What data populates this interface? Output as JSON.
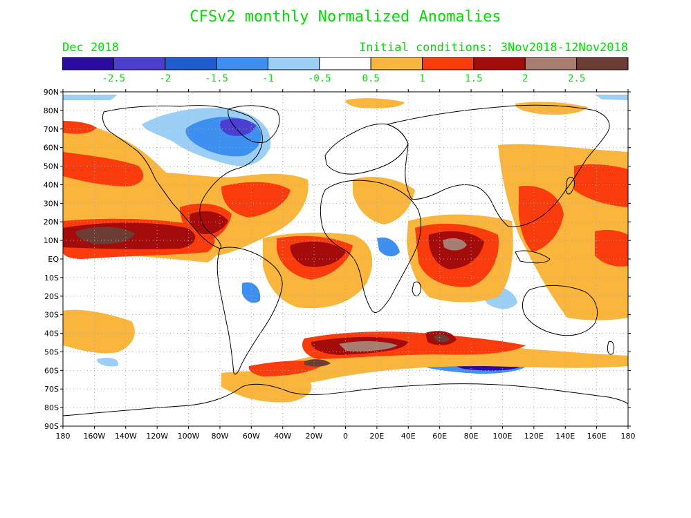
{
  "title": "CFSv2 monthly Normalized Anomalies",
  "month_label": "Dec 2018",
  "initial_conditions": "Initial conditions: 3Nov2018-12Nov2018",
  "colorbar": {
    "bins": [
      {
        "color": "#2a0aa0"
      },
      {
        "color": "#4a3fd0"
      },
      {
        "color": "#1e5ccf"
      },
      {
        "color": "#3d8ff0"
      },
      {
        "color": "#9ccff5"
      },
      {
        "color": "#ffffff"
      },
      {
        "color": "#f9b53c"
      },
      {
        "color": "#fa3c0c"
      },
      {
        "color": "#a40b0b"
      },
      {
        "color": "#a67d70"
      },
      {
        "color": "#6b3d35"
      }
    ],
    "labels": [
      "-2.5",
      "-2",
      "-1.5",
      "-1",
      "-0.5",
      "0.5",
      "1",
      "1.5",
      "2",
      "2.5"
    ]
  },
  "map": {
    "projection": "equirectangular",
    "lon_labels": [
      "180",
      "160W",
      "140W",
      "120W",
      "100W",
      "80W",
      "60W",
      "40W",
      "20W",
      "0",
      "20E",
      "40E",
      "60E",
      "80E",
      "100E",
      "120E",
      "140E",
      "160E",
      "180"
    ],
    "lat_labels": [
      "90N",
      "80N",
      "70N",
      "60N",
      "50N",
      "40N",
      "30N",
      "20N",
      "10N",
      "EQ",
      "10S",
      "20S",
      "30S",
      "40S",
      "50S",
      "60S",
      "70S",
      "80S",
      "90S"
    ],
    "lon_range": [
      -180,
      180
    ],
    "lat_range": [
      -90,
      90
    ],
    "gridlines": "dotted",
    "continent_outline_color": "#000000"
  }
}
